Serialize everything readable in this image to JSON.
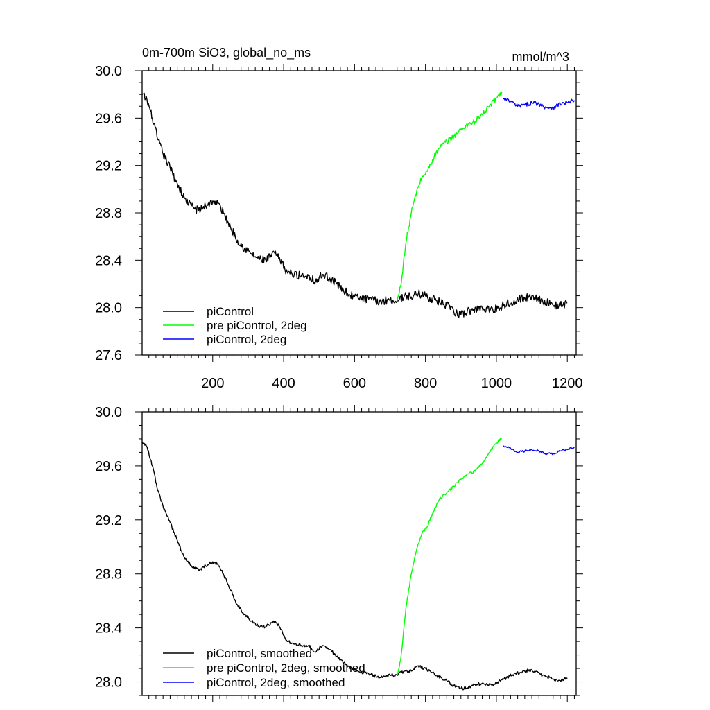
{
  "chart_data": [
    {
      "type": "line",
      "title": "0m-700m SiO3, global_no_ms",
      "units": "mmol/m^3",
      "xlabel": "",
      "ylabel": "",
      "xlim": [
        1,
        1225
      ],
      "ylim": [
        27.6,
        30.0
      ],
      "xticks": [
        200,
        400,
        600,
        800,
        1000,
        1200
      ],
      "xtick_labels": [
        "200",
        "400",
        "600",
        "800",
        "1000",
        "1200"
      ],
      "yticks": [
        27.6,
        28.0,
        28.4,
        28.8,
        29.2,
        29.6,
        30.0
      ],
      "ytick_labels": [
        "27.6",
        "28.0",
        "28.4",
        "28.8",
        "29.2",
        "29.6",
        "30.0"
      ],
      "legend_position": "bottom-left",
      "series": [
        {
          "name": "piControl",
          "color": "#000000",
          "noise": 0.035,
          "x": [
            1,
            15,
            30,
            45,
            60,
            80,
            100,
            120,
            140,
            160,
            180,
            200,
            215,
            230,
            250,
            270,
            290,
            310,
            330,
            350,
            375,
            390,
            410,
            430,
            450,
            470,
            490,
            510,
            530,
            550,
            580,
            610,
            640,
            670,
            700,
            720,
            740,
            760,
            780,
            800,
            830,
            860,
            880,
            900,
            930,
            960,
            990,
            1020,
            1050,
            1080,
            1100,
            1130,
            1160,
            1180,
            1200
          ],
          "y": [
            29.8,
            29.75,
            29.6,
            29.42,
            29.3,
            29.18,
            29.05,
            28.92,
            28.86,
            28.82,
            28.86,
            28.9,
            28.88,
            28.8,
            28.68,
            28.57,
            28.5,
            28.45,
            28.41,
            28.4,
            28.46,
            28.4,
            28.3,
            28.28,
            28.27,
            28.27,
            28.22,
            28.28,
            28.25,
            28.2,
            28.12,
            28.08,
            28.07,
            28.05,
            28.07,
            28.05,
            28.1,
            28.09,
            28.12,
            28.1,
            28.06,
            28.02,
            27.96,
            27.94,
            27.98,
            28.0,
            27.98,
            28.02,
            28.06,
            28.08,
            28.1,
            28.06,
            28.02,
            28.02,
            28.04
          ]
        },
        {
          "name": "pre piControl, 2deg",
          "color": "#00ff00",
          "noise": 0.025,
          "x": [
            720,
            730,
            745,
            760,
            775,
            790,
            805,
            820,
            840,
            860,
            880,
            900,
            920,
            940,
            960,
            980,
            1000,
            1015
          ],
          "y": [
            28.05,
            28.18,
            28.55,
            28.8,
            28.98,
            29.1,
            29.15,
            29.25,
            29.35,
            29.4,
            29.45,
            29.5,
            29.55,
            29.57,
            29.63,
            29.7,
            29.77,
            29.82
          ]
        },
        {
          "name": "piControl, 2deg",
          "color": "#0000ff",
          "noise": 0.018,
          "x": [
            1020,
            1040,
            1060,
            1080,
            1100,
            1120,
            1140,
            1160,
            1180,
            1200,
            1220
          ],
          "y": [
            29.76,
            29.74,
            29.7,
            29.71,
            29.73,
            29.72,
            29.69,
            29.69,
            29.72,
            29.73,
            29.75
          ]
        }
      ]
    },
    {
      "type": "line",
      "title": "",
      "xlabel": "",
      "ylabel": "",
      "xlim": [
        1,
        1225
      ],
      "ylim": [
        27.9,
        30.0
      ],
      "xticks": [
        200,
        400,
        600,
        800,
        1000,
        1200
      ],
      "xtick_labels": [],
      "yticks": [
        28.0,
        28.4,
        28.8,
        29.2,
        29.6,
        30.0
      ],
      "ytick_labels": [
        "28.0",
        "28.4",
        "28.8",
        "29.2",
        "29.6",
        "30.0"
      ],
      "legend_position": "bottom-left",
      "series": [
        {
          "name": "piControl, smoothed",
          "color": "#000000",
          "noise": 0.012,
          "x": [
            1,
            15,
            30,
            45,
            60,
            80,
            100,
            120,
            140,
            160,
            180,
            200,
            215,
            230,
            250,
            270,
            290,
            310,
            330,
            350,
            375,
            390,
            410,
            430,
            450,
            470,
            490,
            510,
            530,
            550,
            580,
            610,
            640,
            670,
            700,
            720,
            740,
            760,
            780,
            800,
            830,
            860,
            880,
            900,
            930,
            960,
            990,
            1020,
            1050,
            1080,
            1100,
            1130,
            1160,
            1180,
            1200
          ],
          "y": [
            29.78,
            29.74,
            29.6,
            29.42,
            29.3,
            29.18,
            29.05,
            28.92,
            28.86,
            28.83,
            28.86,
            28.89,
            28.87,
            28.8,
            28.68,
            28.57,
            28.5,
            28.45,
            28.41,
            28.41,
            28.45,
            28.4,
            28.3,
            28.28,
            28.27,
            28.27,
            28.22,
            28.27,
            28.24,
            28.19,
            28.12,
            28.08,
            28.06,
            28.03,
            28.05,
            28.05,
            28.08,
            28.08,
            28.12,
            28.1,
            28.05,
            28.01,
            27.97,
            27.95,
            27.97,
            27.99,
            27.98,
            28.02,
            28.06,
            28.08,
            28.09,
            28.05,
            28.02,
            28.01,
            28.03
          ]
        },
        {
          "name": "pre piControl, 2deg, smoothed",
          "color": "#00ff00",
          "noise": 0.01,
          "x": [
            720,
            730,
            745,
            760,
            775,
            790,
            805,
            820,
            840,
            860,
            880,
            900,
            920,
            940,
            960,
            980,
            1000,
            1015
          ],
          "y": [
            28.05,
            28.16,
            28.55,
            28.8,
            28.98,
            29.1,
            29.15,
            29.25,
            29.36,
            29.4,
            29.45,
            29.5,
            29.54,
            29.56,
            29.62,
            29.7,
            29.77,
            29.81
          ]
        },
        {
          "name": "piControl, 2deg, smoothed",
          "color": "#0000ff",
          "noise": 0.008,
          "x": [
            1020,
            1040,
            1060,
            1080,
            1100,
            1120,
            1140,
            1160,
            1180,
            1200,
            1220
          ],
          "y": [
            29.75,
            29.73,
            29.7,
            29.71,
            29.72,
            29.71,
            29.69,
            29.69,
            29.71,
            29.72,
            29.74
          ]
        }
      ]
    }
  ]
}
